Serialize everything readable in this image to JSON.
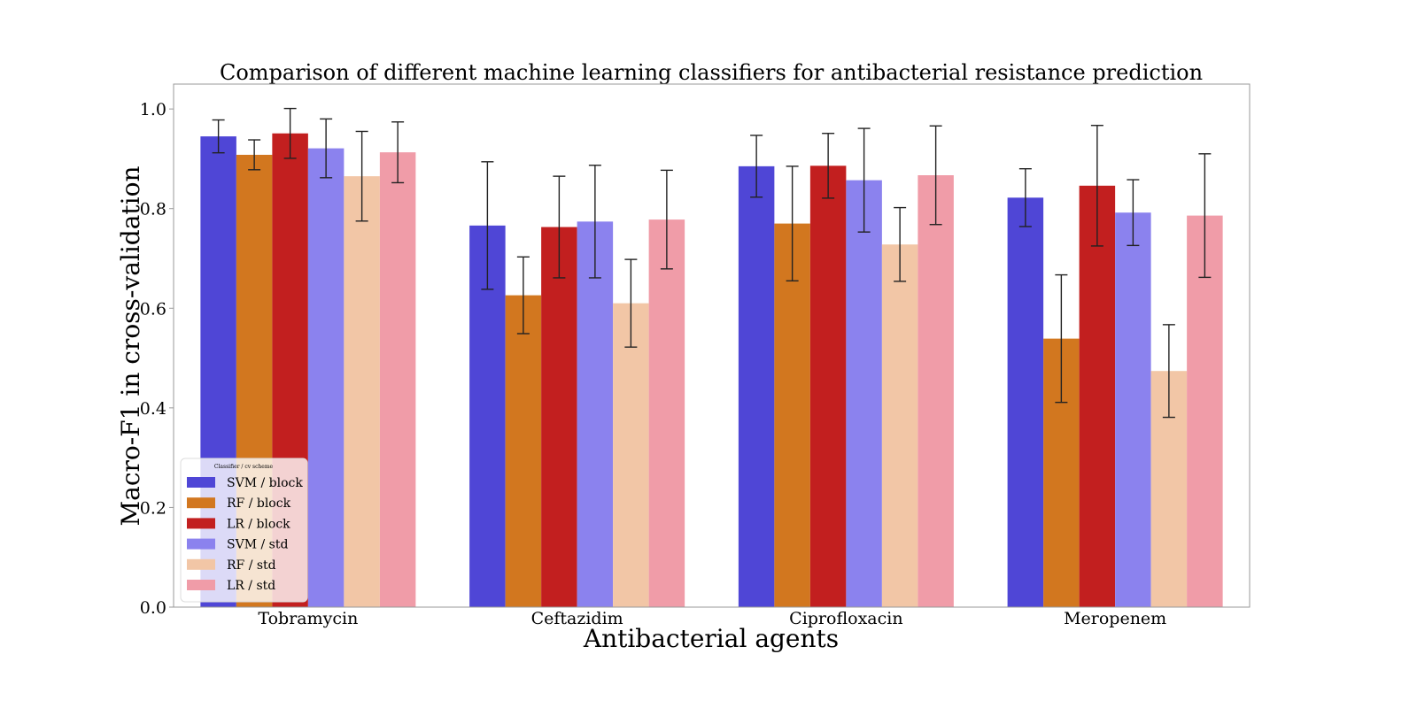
{
  "chart_data": {
    "type": "bar",
    "title": "Comparison of different machine learning classifiers for antibacterial resistance prediction",
    "xlabel": "Antibacterial agents",
    "ylabel": "Macro-F1 in cross-validation",
    "ylim": [
      0,
      1.05
    ],
    "yticks": [
      "0.0",
      "0.2",
      "0.4",
      "0.6",
      "0.8",
      "1.0"
    ],
    "categories": [
      "Tobramycin",
      "Ceftazidim",
      "Ciprofloxacin",
      "Meropenem"
    ],
    "grid": false,
    "legend": {
      "title": "Classifier / cv scheme",
      "placement": "lower-left"
    },
    "series": [
      {
        "name": "SVM / block",
        "color": "#4f46d6",
        "values": [
          0.945,
          0.766,
          0.885,
          0.822
        ],
        "errors": [
          0.033,
          0.128,
          0.062,
          0.058
        ]
      },
      {
        "name": "RF / block",
        "color": "#d2771f",
        "values": [
          0.908,
          0.626,
          0.77,
          0.539
        ],
        "errors": [
          0.03,
          0.077,
          0.115,
          0.128
        ]
      },
      {
        "name": "LR / block",
        "color": "#c21f1f",
        "values": [
          0.951,
          0.763,
          0.886,
          0.846
        ],
        "errors": [
          0.05,
          0.102,
          0.065,
          0.121
        ]
      },
      {
        "name": "SVM / std",
        "color": "#8b82ee",
        "values": [
          0.921,
          0.774,
          0.857,
          0.792
        ],
        "errors": [
          0.059,
          0.113,
          0.104,
          0.066
        ]
      },
      {
        "name": "RF / std",
        "color": "#f2c6a6",
        "values": [
          0.865,
          0.61,
          0.728,
          0.474
        ],
        "errors": [
          0.09,
          0.088,
          0.074,
          0.093
        ]
      },
      {
        "name": "LR / std",
        "color": "#f09ca8",
        "values": [
          0.913,
          0.778,
          0.867,
          0.786
        ],
        "errors": [
          0.061,
          0.099,
          0.099,
          0.124
        ]
      }
    ]
  }
}
